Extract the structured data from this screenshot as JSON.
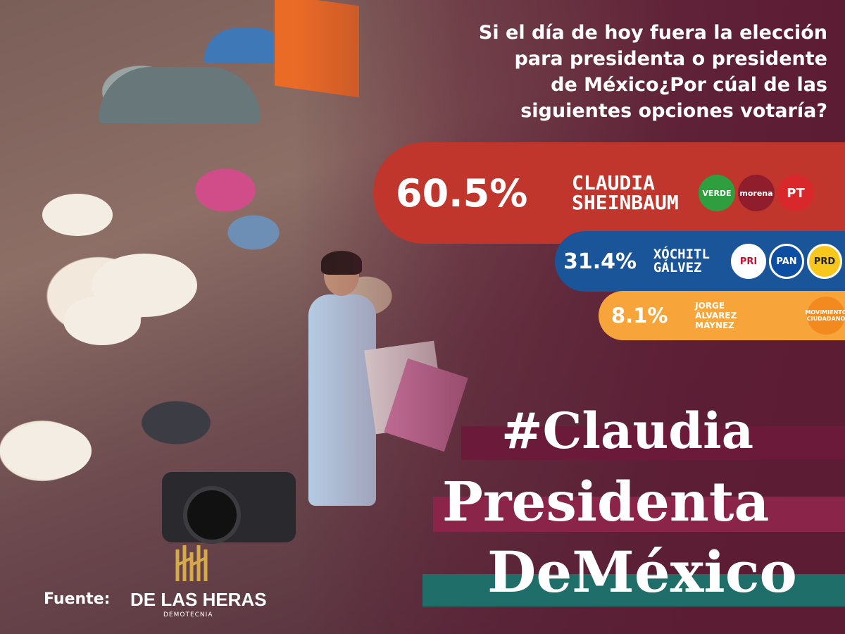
{
  "question": [
    "Si el día de hoy fuera la elección",
    "para presidenta o presidente",
    "de México¿Por cúal de las",
    "siguientes opciones votaría?"
  ],
  "results": [
    {
      "percent": "60.5%",
      "name_lines": [
        "Claudia",
        "Sheinbaum"
      ],
      "color": "#c0362c",
      "parties": [
        "VERDE",
        "morena",
        "PT"
      ]
    },
    {
      "percent": "31.4%",
      "name_lines": [
        "Xóchitl",
        "Gálvez"
      ],
      "color": "#1a5599",
      "parties": [
        "PRI",
        "PAN",
        "PRD"
      ]
    },
    {
      "percent": "8.1%",
      "name_lines": [
        "Jorge",
        "Álvarez",
        "Máynez"
      ],
      "color": "#f7a53a",
      "parties": [
        "MOVIMIENTO CIUDADANO"
      ]
    }
  ],
  "hashtag": [
    "#Claudia",
    "Presidenta",
    "DeMéxico"
  ],
  "source": {
    "label": "Fuente:",
    "brand": "DE LAS HERAS",
    "brand_sub": "DEMOTECNIA"
  },
  "colors": {
    "background": "#5b1f33",
    "verde": "#2e9e3e",
    "morena": "#8f1d2c",
    "pt": "#d8282b",
    "pri": "#ffffff",
    "pan": "#0b4ea2",
    "prd": "#f7c71c",
    "mc": "#f28a20"
  }
}
